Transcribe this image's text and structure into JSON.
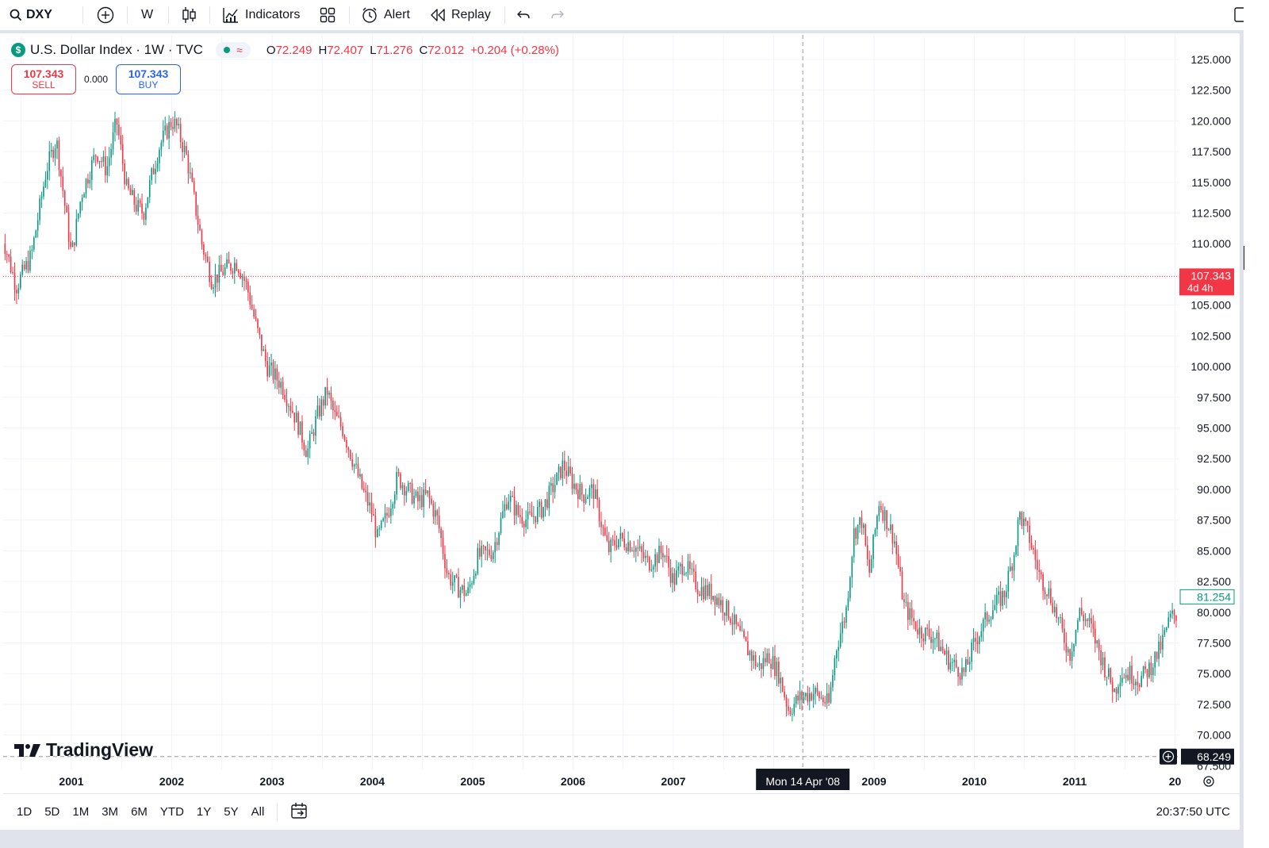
{
  "toolbar": {
    "symbol": "DXY",
    "interval": "W",
    "indicators_label": "Indicators",
    "alert_label": "Alert",
    "replay_label": "Replay"
  },
  "legend": {
    "symbol_badge": "$",
    "title": "U.S. Dollar Index · 1W · TVC",
    "market_status_icon": "≈",
    "open_label": "O",
    "open_value": "72.249",
    "high_label": "H",
    "high_value": "72.407",
    "low_label": "L",
    "low_value": "71.276",
    "close_label": "C",
    "close_value": "72.012",
    "change": "+0.204 (+0.28%)"
  },
  "trade": {
    "sell_price": "107.343",
    "sell_label": "SELL",
    "spread": "0.000",
    "buy_price": "107.343",
    "buy_label": "BUY"
  },
  "logo_text": "TradingView",
  "price_scale": {
    "labels": [
      "125.000",
      "122.500",
      "120.000",
      "117.500",
      "115.000",
      "112.500",
      "110.000",
      "105.000",
      "102.500",
      "100.000",
      "97.500",
      "95.000",
      "92.500",
      "90.000",
      "87.500",
      "85.000",
      "82.500",
      "80.000",
      "77.500",
      "75.000",
      "72.500",
      "70.000"
    ],
    "current_price_label": "107.343",
    "countdown_label": "4d 4h",
    "last_visible_label": "81.254",
    "crosshair_price_label": "68.249",
    "partial_bottom_label": "67.500"
  },
  "time_scale": {
    "labels": [
      "2001",
      "2002",
      "2003",
      "2004",
      "2005",
      "2006",
      "2007",
      "2009",
      "2010",
      "2011",
      "20"
    ],
    "crosshair_label": "Mon 14 Apr '08"
  },
  "range_buttons": [
    "1D",
    "5D",
    "1M",
    "3M",
    "6M",
    "YTD",
    "1Y",
    "5Y",
    "All"
  ],
  "clock": "20:37:50 UTC",
  "colors": {
    "up": "#089981",
    "down": "#f23645",
    "accent": "#2962ff",
    "grid": "#f0f3fa"
  },
  "chart_data": {
    "type": "line",
    "title": "U.S. Dollar Index · 1W · TVC",
    "xlabel": "",
    "ylabel": "",
    "ylim": [
      67.2,
      127.0
    ],
    "x_unit": "year",
    "series": [
      {
        "x": [
          2000.3,
          2000.45,
          2000.6,
          2000.75,
          2000.85,
          2001.0,
          2001.1,
          2001.25,
          2001.35,
          2001.45,
          2001.55,
          2001.65,
          2001.72,
          2001.8,
          2001.88,
          2002.0,
          2002.05,
          2002.15,
          2002.3,
          2002.4,
          2002.55,
          2002.65,
          2002.75,
          2002.85,
          2002.95,
          2003.0,
          2003.1,
          2003.25,
          2003.35,
          2003.45,
          2003.55,
          2003.62,
          2003.7,
          2003.8,
          2003.9,
          2004.0,
          2004.05,
          2004.15,
          2004.25,
          2004.35,
          2004.45,
          2004.55,
          2004.65,
          2004.75,
          2004.85,
          2004.95,
          2005.05,
          2005.2,
          2005.35,
          2005.45,
          2005.55,
          2005.7,
          2005.85,
          2005.9,
          2006.0,
          2006.1,
          2006.2,
          2006.35,
          2006.45,
          2006.6,
          2006.75,
          2006.9,
          2007.0,
          2007.1,
          2007.25,
          2007.4,
          2007.55,
          2007.7,
          2007.85,
          2007.95,
          2008.05,
          2008.15,
          2008.25,
          2008.4,
          2008.55,
          2008.62,
          2008.72,
          2008.8,
          2008.88,
          2008.95,
          2009.05,
          2009.15,
          2009.2,
          2009.3,
          2009.45,
          2009.6,
          2009.75,
          2009.9,
          2010.0,
          2010.15,
          2010.3,
          2010.4,
          2010.45,
          2010.55,
          2010.65,
          2010.75,
          2010.85,
          2010.95,
          2011.05,
          2011.15,
          2011.3,
          2011.4,
          2011.45,
          2011.55,
          2011.65,
          2011.75,
          2011.85,
          2011.95,
          2012.05,
          2012.15
        ],
        "y": [
          111.0,
          106.5,
          109.0,
          116.0,
          118.5,
          109.0,
          114.0,
          117.5,
          116.0,
          120.0,
          114.5,
          113.0,
          112.5,
          115.5,
          118.0,
          120.0,
          119.5,
          117.0,
          110.0,
          107.0,
          108.0,
          108.5,
          106.5,
          103.0,
          100.0,
          99.5,
          98.5,
          95.5,
          93.0,
          96.0,
          98.0,
          96.0,
          95.0,
          92.5,
          90.0,
          88.0,
          86.0,
          88.0,
          91.0,
          90.0,
          89.0,
          89.5,
          87.5,
          83.0,
          82.0,
          81.5,
          84.5,
          85.0,
          89.5,
          88.0,
          87.5,
          88.5,
          91.0,
          92.0,
          90.5,
          89.5,
          90.0,
          85.0,
          86.0,
          85.5,
          84.0,
          85.0,
          82.5,
          84.0,
          82.0,
          81.5,
          80.0,
          77.5,
          75.5,
          76.5,
          75.0,
          72.0,
          73.0,
          73.5,
          72.5,
          77.0,
          80.0,
          86.5,
          87.5,
          83.0,
          89.0,
          87.0,
          86.0,
          80.5,
          78.5,
          78.0,
          76.0,
          75.0,
          77.5,
          80.0,
          81.5,
          85.0,
          88.0,
          86.0,
          83.0,
          81.5,
          79.0,
          76.5,
          80.0,
          79.0,
          75.5,
          73.5,
          75.0,
          75.0,
          74.5,
          75.5,
          77.0,
          79.5,
          80.0,
          81.25
        ]
      }
    ],
    "grid": true,
    "legend": "none"
  }
}
